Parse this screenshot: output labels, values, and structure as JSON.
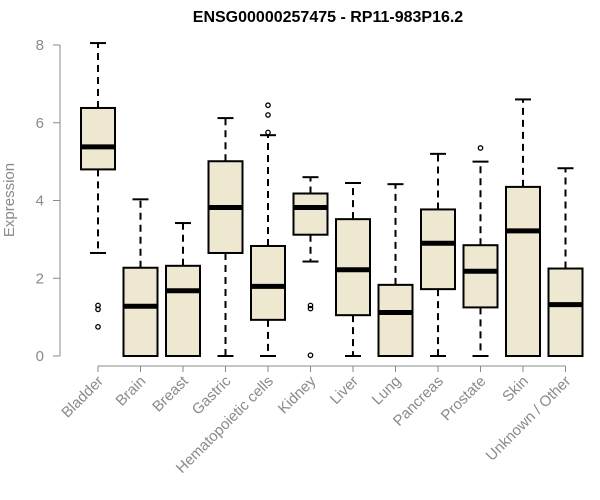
{
  "chart_data": {
    "type": "boxplot",
    "title": "ENSG00000257475 - RP11-983P16.2",
    "xlabel": "",
    "ylabel": "Expression",
    "ylim": [
      0,
      8
    ],
    "yticks": [
      0,
      2,
      4,
      6,
      8
    ],
    "categories": [
      "Bladder",
      "Brain",
      "Breast",
      "Gastric",
      "Hematopoietic cells",
      "Kidney",
      "Liver",
      "Lung",
      "Pancreas",
      "Prostate",
      "Skin",
      "Unknown / Other"
    ],
    "boxes": [
      {
        "name": "Bladder",
        "whisker_low": 2.65,
        "q1": 4.8,
        "median": 5.38,
        "q3": 6.38,
        "whisker_high": 8.05,
        "outliers": [
          1.3,
          1.2,
          0.75
        ]
      },
      {
        "name": "Brain",
        "whisker_low": 0,
        "q1": 0,
        "median": 1.28,
        "q3": 2.27,
        "whisker_high": 4.03,
        "outliers": []
      },
      {
        "name": "Breast",
        "whisker_low": 0,
        "q1": 0,
        "median": 1.68,
        "q3": 2.32,
        "whisker_high": 3.42,
        "outliers": []
      },
      {
        "name": "Gastric",
        "whisker_low": 0,
        "q1": 2.65,
        "median": 3.82,
        "q3": 5.01,
        "whisker_high": 6.12,
        "outliers": []
      },
      {
        "name": "Hematopoietic cells",
        "whisker_low": 0,
        "q1": 0.93,
        "median": 1.79,
        "q3": 2.83,
        "whisker_high": 5.68,
        "outliers": [
          6.45,
          6.2,
          5.75
        ]
      },
      {
        "name": "Kidney",
        "whisker_low": 2.43,
        "q1": 3.12,
        "median": 3.82,
        "q3": 4.18,
        "whisker_high": 4.6,
        "outliers": [
          1.3,
          1.22,
          0.02
        ]
      },
      {
        "name": "Liver",
        "whisker_low": 0,
        "q1": 1.05,
        "median": 2.22,
        "q3": 3.52,
        "whisker_high": 4.45,
        "outliers": []
      },
      {
        "name": "Lung",
        "whisker_low": 0,
        "q1": 0,
        "median": 1.12,
        "q3": 1.83,
        "whisker_high": 4.42,
        "outliers": []
      },
      {
        "name": "Pancreas",
        "whisker_low": 0,
        "q1": 1.72,
        "median": 2.9,
        "q3": 3.77,
        "whisker_high": 5.2,
        "outliers": []
      },
      {
        "name": "Prostate",
        "whisker_low": 0,
        "q1": 1.25,
        "median": 2.18,
        "q3": 2.85,
        "whisker_high": 5.0,
        "outliers": [
          5.35
        ]
      },
      {
        "name": "Skin",
        "whisker_low": 0,
        "q1": 0,
        "median": 3.22,
        "q3": 4.35,
        "whisker_high": 6.6,
        "outliers": []
      },
      {
        "name": "Unknown / Other",
        "whisker_low": 0,
        "q1": 0,
        "median": 1.32,
        "q3": 2.25,
        "whisker_high": 4.83,
        "outliers": []
      }
    ]
  },
  "colors": {
    "box_fill": "#efe8d0",
    "box_stroke": "#000000",
    "axis": "#8a8a8a"
  }
}
